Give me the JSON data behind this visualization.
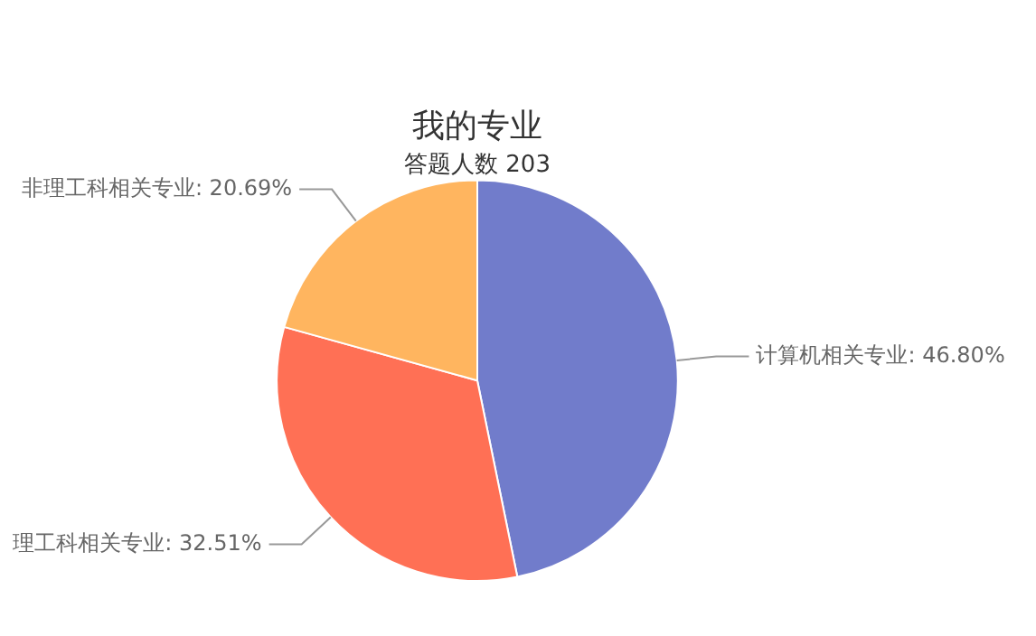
{
  "chart_data": {
    "type": "pie",
    "title": "我的专业",
    "subtitle": "答题人数 203",
    "categories": [
      "计算机相关专业",
      "理工科相关专业",
      "非理工科相关专业"
    ],
    "values": [
      46.8,
      32.51,
      20.69
    ],
    "value_labels": [
      "46.80%",
      "32.51%",
      "20.69%"
    ],
    "colors": [
      "#717ccb",
      "#ff7055",
      "#ffb55f"
    ],
    "legend": false
  }
}
